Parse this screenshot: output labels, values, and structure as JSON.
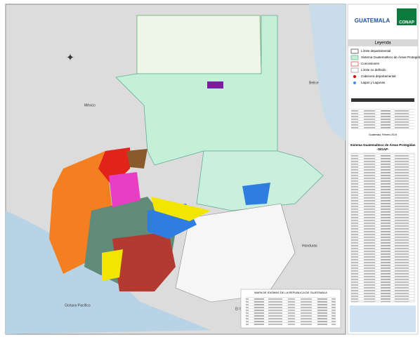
{
  "header": {
    "logo_text": "GUATEMALA",
    "org": "CONAP"
  },
  "legend": {
    "title": "Leyenda",
    "items": [
      "Límite departamental",
      "Sistema Guatemalteco de Áreas Protegidas",
      "Concesiones",
      "Límite no definido",
      "Cabecera departamental",
      "Lagos y Lagunas"
    ]
  },
  "info": {
    "date": "Guatemala, Febrero 2019"
  },
  "table": {
    "title": "Sistema Guatemalteco de Áreas Protegidas",
    "subtitle": "-SIGAP-"
  },
  "map_labels": {
    "mexico": "México",
    "belize": "Belice",
    "honduras": "Honduras",
    "el_salvador": "El Salvador",
    "ocean": "Océano Pacífico"
  },
  "inset_title": "MAPA DE IDIOMAS DE LA REPUBLICA DE GUATEMALA"
}
